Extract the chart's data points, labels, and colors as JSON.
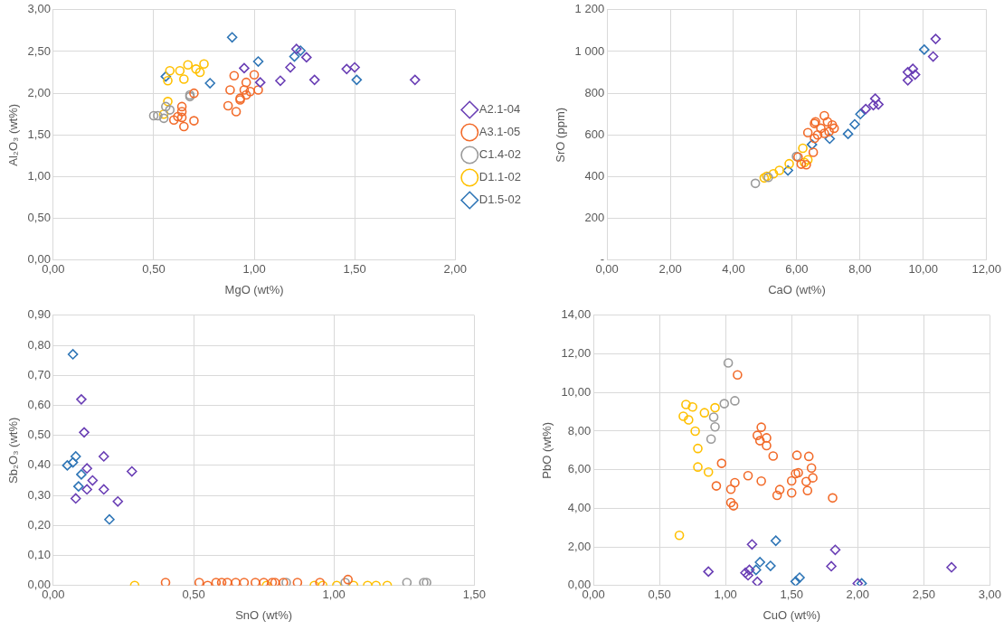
{
  "chart_data": [
    {
      "type": "scatter",
      "xlabel": "MgO (wt%)",
      "ylabel": "Al₂O₃ (wt%)",
      "legend": "right",
      "grid": true,
      "xlim": [
        0,
        2
      ],
      "xticks": [
        {
          "value": 0,
          "label": "0,00"
        },
        {
          "value": 0.5,
          "label": "0,50"
        },
        {
          "value": 1,
          "label": "1,00"
        },
        {
          "value": 1.5,
          "label": "1,50"
        },
        {
          "value": 2,
          "label": "2,00"
        }
      ],
      "ylim": [
        0,
        3
      ],
      "yticks": [
        {
          "value": 0,
          "label": "0,00"
        },
        {
          "value": 0.5,
          "label": "0,50"
        },
        {
          "value": 1,
          "label": "1,00"
        },
        {
          "value": 1.5,
          "label": "1,50"
        },
        {
          "value": 2,
          "label": "2,00"
        },
        {
          "value": 2.5,
          "label": "2,50"
        },
        {
          "value": 3,
          "label": "3,00"
        }
      ],
      "series": [
        {
          "name": "A2.1-04",
          "color": "#6a3fb5",
          "marker": "diamond",
          "x": [
            0.95,
            1.21,
            1.26,
            1.18,
            1.03,
            1.13,
            1.3,
            1.46,
            1.5,
            1.8
          ],
          "values": [
            2.3,
            2.53,
            2.43,
            2.31,
            2.13,
            2.15,
            2.16,
            2.29,
            2.31,
            2.16
          ]
        },
        {
          "name": "A3.1-05",
          "color": "#f26b2a",
          "marker": "circle",
          "x": [
            0.9,
            1.0,
            0.96,
            0.88,
            1.02,
            0.87,
            0.91,
            0.93,
            0.96,
            0.95,
            0.98,
            0.93,
            0.64,
            0.64,
            0.62,
            0.6,
            0.65,
            0.7,
            0.7,
            0.64
          ],
          "values": [
            2.21,
            2.22,
            2.13,
            2.04,
            2.04,
            1.85,
            1.78,
            1.94,
            1.98,
            2.04,
            2.02,
            1.92,
            1.84,
            1.78,
            1.72,
            1.68,
            1.6,
            1.67,
            2.0,
            1.71
          ]
        },
        {
          "name": "C1.4-02",
          "color": "#9a9a9a",
          "marker": "circle",
          "x": [
            0.5,
            0.52,
            0.55,
            0.56,
            0.58,
            0.68,
            0.68
          ],
          "values": [
            1.73,
            1.73,
            1.7,
            1.84,
            1.8,
            1.96,
            1.98
          ]
        },
        {
          "name": "D1.1-02",
          "color": "#ffc000",
          "marker": "circle",
          "x": [
            0.58,
            0.63,
            0.67,
            0.71,
            0.73,
            0.75,
            0.65,
            0.57,
            0.57,
            0.55
          ],
          "values": [
            2.27,
            2.27,
            2.34,
            2.29,
            2.25,
            2.35,
            2.17,
            2.15,
            1.9,
            1.75
          ]
        },
        {
          "name": "D1.5-02",
          "color": "#2e75b6",
          "marker": "diamond",
          "x": [
            0.89,
            0.56,
            0.78,
            1.02,
            1.2,
            1.23,
            1.51
          ],
          "values": [
            2.67,
            2.2,
            2.12,
            2.38,
            2.44,
            2.51,
            2.16
          ]
        }
      ]
    },
    {
      "type": "scatter",
      "xlabel": "CaO (wt%)",
      "ylabel": "SrO (ppm)",
      "grid": true,
      "xlim": [
        0,
        12
      ],
      "xticks": [
        {
          "value": 0,
          "label": "0,00"
        },
        {
          "value": 2,
          "label": "2,00"
        },
        {
          "value": 4,
          "label": "4,00"
        },
        {
          "value": 6,
          "label": "6,00"
        },
        {
          "value": 8,
          "label": "8,00"
        },
        {
          "value": 10,
          "label": "10,00"
        },
        {
          "value": 12,
          "label": "12,00"
        }
      ],
      "ylim": [
        0,
        1200
      ],
      "yticks": [
        {
          "value": 0,
          "label": "-"
        },
        200,
        400,
        600,
        800,
        {
          "value": 1000,
          "label": "1 000"
        },
        {
          "value": 1200,
          "label": "1 200"
        }
      ],
      "series": [
        {
          "color": "#6a3fb5",
          "marker": "diamond",
          "x": [
            10.39,
            10.31,
            9.51,
            9.67,
            9.51,
            9.74,
            8.48,
            8.58,
            8.42,
            8.18
          ],
          "values": [
            1060,
            976,
            901,
            917,
            862,
            889,
            774,
            746,
            743,
            724
          ]
        },
        {
          "color": "#f26b2a",
          "marker": "circle",
          "x": [
            6.87,
            6.59,
            6.56,
            6.35,
            6.76,
            6.97,
            7.12,
            7.18,
            7.02,
            6.66,
            6.56,
            6.87,
            6.52,
            6.04,
            6.14,
            6.3
          ],
          "values": [
            692,
            663,
            655,
            611,
            632,
            663,
            648,
            632,
            616,
            600,
            584,
            608,
            517,
            494,
            460,
            457
          ]
        },
        {
          "color": "#9a9a9a",
          "marker": "circle",
          "x": [
            4.69,
            5.99,
            5.1
          ],
          "values": [
            368,
            497,
            397
          ]
        },
        {
          "color": "#ffc000",
          "marker": "circle",
          "x": [
            6.19,
            6.35,
            5.76,
            5.45,
            5.26,
            5.05,
            4.97,
            6.24
          ],
          "values": [
            536,
            481,
            462,
            430,
            414,
            402,
            394,
            468
          ]
        },
        {
          "color": "#2e75b6",
          "marker": "diamond",
          "x": [
            10.03,
            8.01,
            7.83,
            7.62,
            7.04,
            6.48,
            5.72
          ],
          "values": [
            1009,
            700,
            651,
            605,
            582,
            554,
            430
          ]
        }
      ]
    },
    {
      "type": "scatter",
      "xlabel": "SnO (wt%)",
      "ylabel": "Sb₂O₃ (wt%)",
      "grid": true,
      "xlim": [
        0,
        1.5
      ],
      "xticks": [
        {
          "value": 0,
          "label": "0,00"
        },
        {
          "value": 0.5,
          "label": "0,50"
        },
        {
          "value": 1,
          "label": "1,00"
        },
        {
          "value": 1.5,
          "label": "1,50"
        }
      ],
      "ylim": [
        0,
        0.9
      ],
      "yticks": [
        {
          "value": 0,
          "label": "0,00"
        },
        {
          "value": 0.1,
          "label": "0,10"
        },
        {
          "value": 0.2,
          "label": "0,20"
        },
        {
          "value": 0.3,
          "label": "0,30"
        },
        {
          "value": 0.4,
          "label": "0,40"
        },
        {
          "value": 0.5,
          "label": "0,50"
        },
        {
          "value": 0.6,
          "label": "0,60"
        },
        {
          "value": 0.7,
          "label": "0,70"
        },
        {
          "value": 0.8,
          "label": "0,80"
        },
        {
          "value": 0.9,
          "label": "0,90"
        }
      ],
      "series": [
        {
          "color": "#6a3fb5",
          "marker": "diamond",
          "x": [
            0.1,
            0.11,
            0.08,
            0.12,
            0.12,
            0.14,
            0.18,
            0.18,
            0.23,
            0.28
          ],
          "values": [
            0.62,
            0.51,
            0.29,
            0.39,
            0.32,
            0.35,
            0.43,
            0.32,
            0.28,
            0.38
          ]
        },
        {
          "color": "#f26b2a",
          "marker": "circle",
          "x": [
            0.4,
            0.52,
            0.55,
            0.58,
            0.6,
            0.62,
            0.65,
            0.68,
            0.72,
            0.75,
            0.78,
            0.79,
            0.82,
            0.87,
            0.95,
            1.05
          ],
          "values": [
            0.01,
            0.01,
            0.0,
            0.01,
            0.01,
            0.01,
            0.01,
            0.01,
            0.01,
            0.01,
            0.01,
            0.01,
            0.01,
            0.01,
            0.01,
            0.02
          ]
        },
        {
          "color": "#9a9a9a",
          "marker": "circle",
          "x": [
            0.83,
            1.04,
            1.26,
            1.32,
            1.33
          ],
          "values": [
            0.01,
            0.01,
            0.01,
            0.01,
            0.01
          ]
        },
        {
          "color": "#ffc000",
          "marker": "circle",
          "x": [
            0.29,
            0.76,
            0.93,
            0.96,
            1.01,
            1.07,
            1.12,
            1.15,
            1.19
          ],
          "values": [
            0.0,
            0.0,
            0.0,
            0.0,
            0.0,
            0.0,
            0.0,
            0.0,
            0.0
          ]
        },
        {
          "color": "#2e75b6",
          "marker": "diamond",
          "x": [
            0.07,
            0.08,
            0.07,
            0.05,
            0.1,
            0.09,
            0.2
          ],
          "values": [
            0.77,
            0.43,
            0.41,
            0.4,
            0.37,
            0.33,
            0.22
          ]
        }
      ]
    },
    {
      "type": "scatter",
      "xlabel": "CuO (wt%)",
      "ylabel": "PbO (wt%)",
      "grid": true,
      "xlim": [
        0,
        3
      ],
      "xticks": [
        {
          "value": 0,
          "label": "0,00"
        },
        {
          "value": 0.5,
          "label": "0,50"
        },
        {
          "value": 1,
          "label": "1,00"
        },
        {
          "value": 1.5,
          "label": "1,50"
        },
        {
          "value": 2,
          "label": "2,00"
        },
        {
          "value": 2.5,
          "label": "2,50"
        },
        {
          "value": 3,
          "label": "3,00"
        }
      ],
      "ylim": [
        0,
        14
      ],
      "yticks": [
        {
          "value": 0,
          "label": "0,00"
        },
        {
          "value": 2,
          "label": "2,00"
        },
        {
          "value": 4,
          "label": "4,00"
        },
        {
          "value": 6,
          "label": "6,00"
        },
        {
          "value": 8,
          "label": "8,00"
        },
        {
          "value": 10,
          "label": "10,00"
        },
        {
          "value": 12,
          "label": "12,00"
        },
        {
          "value": 14,
          "label": "14,00"
        }
      ],
      "series": [
        {
          "color": "#6a3fb5",
          "marker": "diamond",
          "x": [
            0.87,
            1.15,
            1.17,
            1.18,
            1.2,
            1.24,
            1.8,
            1.83,
            2.0,
            2.71
          ],
          "values": [
            0.72,
            0.66,
            0.53,
            0.81,
            2.13,
            0.19,
            1.0,
            1.85,
            0.11,
            0.94
          ]
        },
        {
          "color": "#f26b2a",
          "marker": "circle",
          "x": [
            1.09,
            1.27,
            1.24,
            1.26,
            1.31,
            1.31,
            1.36,
            1.54,
            1.63,
            1.65,
            1.66,
            1.61,
            1.62,
            1.53,
            1.55,
            1.5,
            1.5,
            1.41,
            1.39,
            1.27,
            1.17,
            1.07,
            1.04,
            1.04,
            1.06,
            0.93,
            0.97,
            1.81
          ],
          "values": [
            10.91,
            8.2,
            7.78,
            7.5,
            7.65,
            7.25,
            6.71,
            6.75,
            6.69,
            6.09,
            5.58,
            5.39,
            4.92,
            5.8,
            5.84,
            5.42,
            4.8,
            4.97,
            4.67,
            5.41,
            5.69,
            5.33,
            4.99,
            4.3,
            4.13,
            5.16,
            6.33,
            4.54
          ]
        },
        {
          "color": "#9a9a9a",
          "marker": "circle",
          "x": [
            1.02,
            0.99,
            1.07,
            0.91,
            0.92,
            0.89
          ],
          "values": [
            11.53,
            9.42,
            9.57,
            8.72,
            8.22,
            7.59
          ]
        },
        {
          "color": "#ffc000",
          "marker": "circle",
          "x": [
            0.7,
            0.75,
            0.68,
            0.72,
            0.84,
            0.92,
            0.77,
            0.79,
            0.79,
            0.87,
            0.65
          ],
          "values": [
            9.38,
            9.25,
            8.77,
            8.58,
            8.95,
            9.21,
            8.0,
            7.1,
            6.14,
            5.88,
            2.6
          ]
        },
        {
          "color": "#2e75b6",
          "marker": "diamond",
          "x": [
            1.23,
            1.26,
            1.34,
            1.38,
            1.53,
            1.56,
            2.03
          ],
          "values": [
            0.81,
            1.21,
            1.02,
            2.32,
            0.21,
            0.41,
            0.11
          ]
        }
      ]
    }
  ]
}
